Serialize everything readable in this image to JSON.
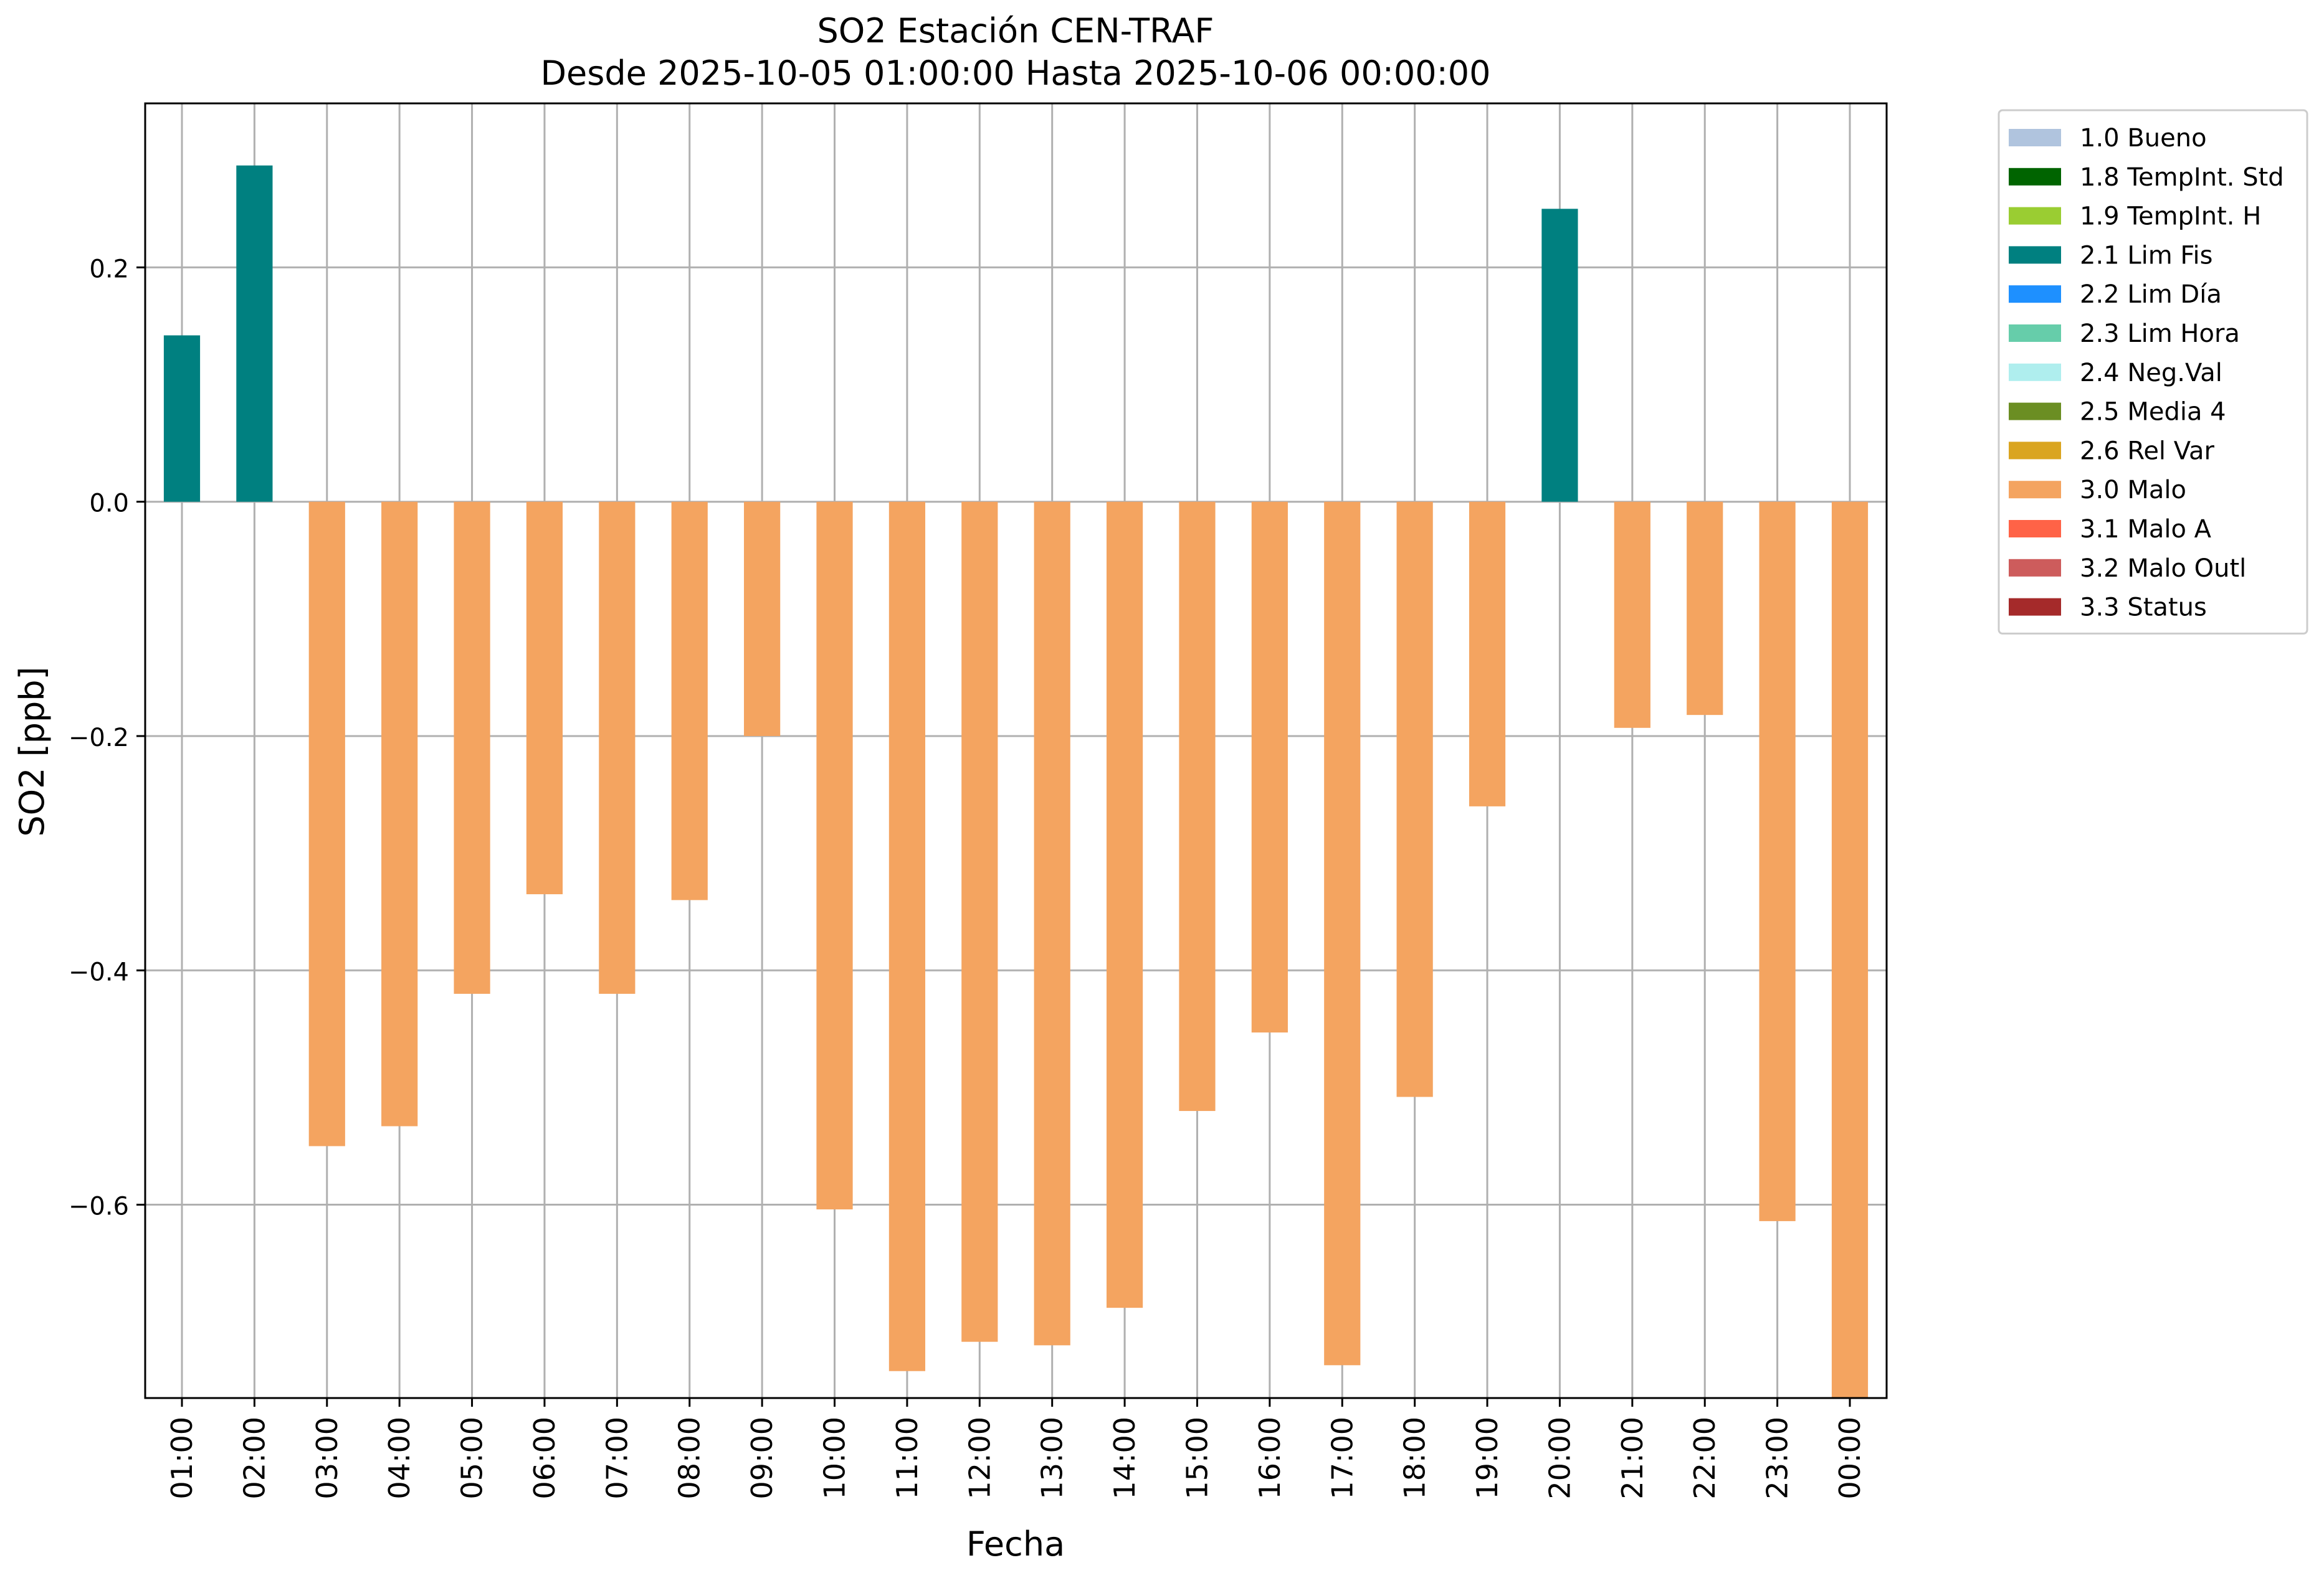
{
  "chart_data": {
    "type": "bar",
    "title": "SO2 Estación CEN-TRAF",
    "subtitle": "Desde 2025-10-05 01:00:00 Hasta 2025-10-06 00:00:00",
    "xlabel": "Fecha",
    "ylabel": "SO2 [ppb]",
    "ylim": [
      -0.765,
      0.34
    ],
    "yticks": [
      -0.6,
      -0.4,
      -0.2,
      0.0,
      0.2
    ],
    "ytick_labels": [
      "−0.6",
      "−0.4",
      "−0.2",
      "0.0",
      "0.2"
    ],
    "grid": true,
    "legend_position": "outside-top-right",
    "categories": [
      "01:00",
      "02:00",
      "03:00",
      "04:00",
      "05:00",
      "06:00",
      "07:00",
      "08:00",
      "09:00",
      "10:00",
      "11:00",
      "12:00",
      "13:00",
      "14:00",
      "15:00",
      "16:00",
      "17:00",
      "18:00",
      "19:00",
      "20:00",
      "21:00",
      "22:00",
      "23:00",
      "00:00"
    ],
    "values": [
      0.142,
      0.287,
      -0.55,
      -0.533,
      -0.42,
      -0.335,
      -0.42,
      -0.34,
      -0.2,
      -0.604,
      -0.742,
      -0.717,
      -0.72,
      -0.688,
      -0.52,
      -0.453,
      -0.737,
      -0.508,
      -0.26,
      0.25,
      -0.193,
      -0.182,
      -0.614,
      -0.765
    ],
    "flags": [
      "2.1 Lim Fis",
      "2.1 Lim Fis",
      "3.0 Malo",
      "3.0 Malo",
      "3.0 Malo",
      "3.0 Malo",
      "3.0 Malo",
      "3.0 Malo",
      "3.0 Malo",
      "3.0 Malo",
      "3.0 Malo",
      "3.0 Malo",
      "3.0 Malo",
      "3.0 Malo",
      "3.0 Malo",
      "3.0 Malo",
      "3.0 Malo",
      "3.0 Malo",
      "3.0 Malo",
      "2.1 Lim Fis",
      "3.0 Malo",
      "3.0 Malo",
      "3.0 Malo",
      "3.0 Malo"
    ],
    "legend": [
      {
        "label": "1.0 Bueno",
        "color": "#b0c4de"
      },
      {
        "label": "1.8 TempInt. Std",
        "color": "#006400"
      },
      {
        "label": "1.9 TempInt. H",
        "color": "#9acd32"
      },
      {
        "label": "2.1 Lim Fis",
        "color": "#008080"
      },
      {
        "label": "2.2 Lim Día",
        "color": "#1e90ff"
      },
      {
        "label": "2.3 Lim Hora",
        "color": "#66cdaa"
      },
      {
        "label": "2.4 Neg.Val",
        "color": "#afeeee"
      },
      {
        "label": "2.5 Media 4",
        "color": "#6b8e23"
      },
      {
        "label": "2.6 Rel Var",
        "color": "#daa520"
      },
      {
        "label": "3.0 Malo",
        "color": "#f4a460"
      },
      {
        "label": "3.1 Malo A",
        "color": "#ff6347"
      },
      {
        "label": "3.2 Malo Outl",
        "color": "#cd5c5c"
      },
      {
        "label": "3.3 Status",
        "color": "#a52a2a"
      }
    ]
  }
}
